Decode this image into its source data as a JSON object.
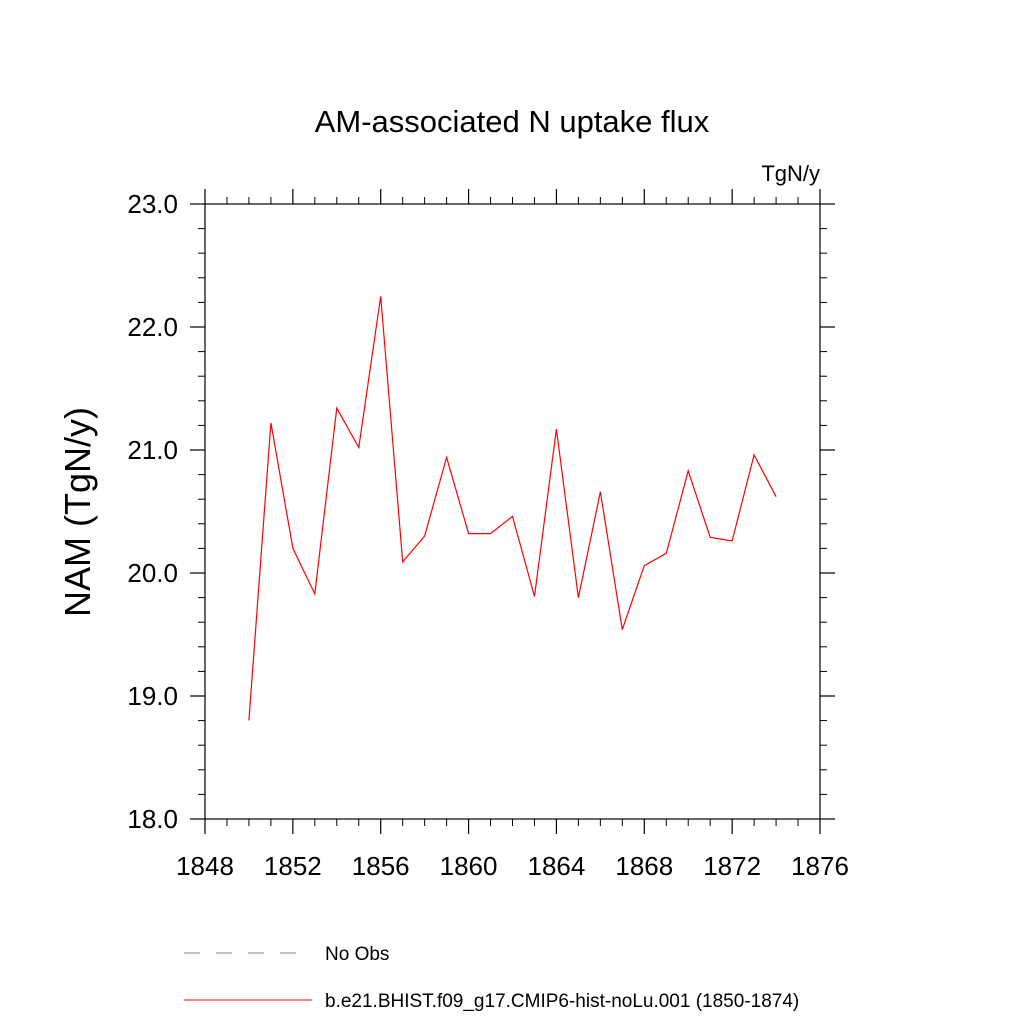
{
  "chart_data": {
    "type": "line",
    "title": "AM-associated N uptake flux",
    "units": "TgN/y",
    "xlabel": "",
    "ylabel": "NAM  (TgN/y)",
    "xlim": [
      1848,
      1876
    ],
    "ylim": [
      18.0,
      23.0
    ],
    "xticks": [
      1848,
      1852,
      1856,
      1860,
      1864,
      1868,
      1872,
      1876
    ],
    "xtick_labels": [
      "1848",
      "1852",
      "1856",
      "1860",
      "1864",
      "1868",
      "1872",
      "1876"
    ],
    "yticks": [
      18.0,
      19.0,
      20.0,
      21.0,
      22.0,
      23.0
    ],
    "ytick_labels": [
      "18.0",
      "19.0",
      "20.0",
      "21.0",
      "22.0",
      "23.0"
    ],
    "grid": false,
    "legend_position": "bottom",
    "series": [
      {
        "name": "b.e21.BHIST.f09_g17.CMIP6-hist-noLu.001 (1850-1874)",
        "color": "#ff0000",
        "style": "solid",
        "x": [
          1850,
          1851,
          1852,
          1853,
          1854,
          1855,
          1856,
          1857,
          1858,
          1859,
          1860,
          1861,
          1862,
          1863,
          1864,
          1865,
          1866,
          1867,
          1868,
          1869,
          1870,
          1871,
          1872,
          1873,
          1874
        ],
        "y": [
          18.8,
          21.22,
          20.2,
          19.83,
          21.34,
          21.02,
          22.25,
          20.09,
          20.3,
          20.94,
          20.32,
          20.32,
          20.46,
          19.81,
          21.17,
          19.8,
          20.66,
          19.54,
          20.06,
          20.16,
          20.83,
          20.29,
          20.26,
          20.96,
          20.62
        ]
      },
      {
        "name": "No Obs",
        "color": "#8080c0",
        "style": "dashed",
        "x": [],
        "y": []
      }
    ]
  }
}
